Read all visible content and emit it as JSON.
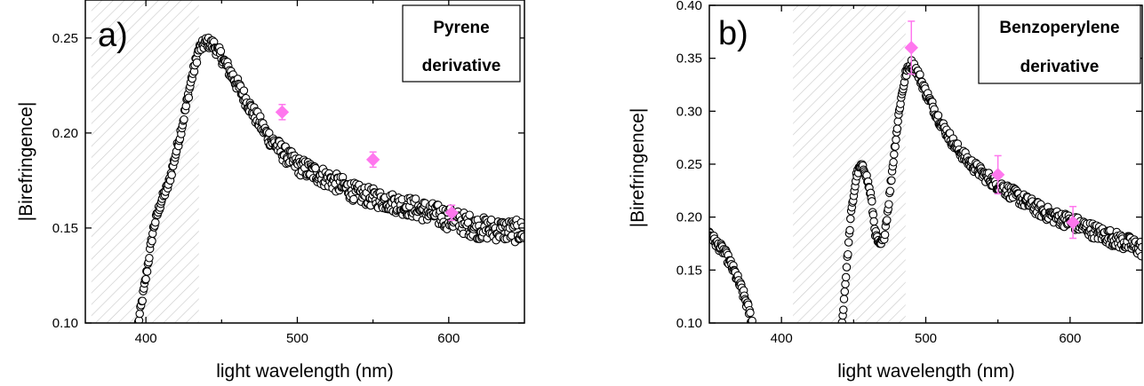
{
  "chart_data": [
    {
      "type": "scatter",
      "panel_label": "a)",
      "legend_lines": [
        "Pyrene",
        "derivative"
      ],
      "xlabel": "light wavelength (nm)",
      "ylabel": "|Birefringence|",
      "xlim": [
        360,
        650
      ],
      "ylim": [
        0.1,
        0.27
      ],
      "xticks": [
        400,
        500,
        600
      ],
      "yticks": [
        0.1,
        0.15,
        0.2,
        0.25
      ],
      "ytick_labels": [
        "0.10",
        "0.15",
        "0.20",
        "0.25"
      ],
      "shaded_region": [
        364,
        435
      ],
      "colors": {
        "measured": "#ffffff",
        "measured_edge": "#000000",
        "computed": "#ff77ee",
        "hatch": "#cccccc"
      },
      "series": [
        {
          "marker": "open-circle",
          "curve": [
            [
              395,
              0.1
            ],
            [
              400,
              0.124
            ],
            [
              405,
              0.15
            ],
            [
              410,
              0.164
            ],
            [
              415,
              0.173
            ],
            [
              420,
              0.19
            ],
            [
              425,
              0.208
            ],
            [
              430,
              0.228
            ],
            [
              435,
              0.244
            ],
            [
              440,
              0.248
            ],
            [
              445,
              0.246
            ],
            [
              450,
              0.24
            ],
            [
              460,
              0.226
            ],
            [
              470,
              0.212
            ],
            [
              480,
              0.199
            ],
            [
              490,
              0.19
            ],
            [
              500,
              0.183
            ],
            [
              520,
              0.176
            ],
            [
              540,
              0.168
            ],
            [
              560,
              0.164
            ],
            [
              580,
              0.16
            ],
            [
              600,
              0.155
            ],
            [
              620,
              0.15
            ],
            [
              650,
              0.148
            ]
          ],
          "band": [
            [
              395,
              0.002
            ],
            [
              440,
              0.003
            ],
            [
              470,
              0.004
            ],
            [
              510,
              0.005
            ],
            [
              560,
              0.005
            ],
            [
              600,
              0.006
            ],
            [
              650,
              0.006
            ]
          ]
        },
        {
          "marker": "diamond",
          "points": [
            {
              "x": 490,
              "y": 0.211,
              "err": 0.004
            },
            {
              "x": 550,
              "y": 0.186,
              "err": 0.004
            },
            {
              "x": 602,
              "y": 0.158,
              "err": 0.004
            }
          ]
        }
      ]
    },
    {
      "type": "scatter",
      "panel_label": "b)",
      "legend_lines": [
        "Benzoperylene",
        "derivative"
      ],
      "xlabel": "light wavelength (nm)",
      "ylabel": "|Birefringence|",
      "xlim": [
        350,
        650
      ],
      "ylim": [
        0.1,
        0.4
      ],
      "xticks": [
        400,
        500,
        600
      ],
      "yticks": [
        0.1,
        0.15,
        0.2,
        0.25,
        0.3,
        0.35,
        0.4
      ],
      "ytick_labels": [
        "0.10",
        "0.15",
        "0.20",
        "0.25",
        "0.30",
        "0.35",
        "0.40"
      ],
      "shaded_region": [
        408,
        486
      ],
      "colors": {
        "measured": "#ffffff",
        "measured_edge": "#000000",
        "computed": "#ff77ee",
        "hatch": "#cccccc"
      },
      "series": [
        {
          "marker": "open-circle",
          "curve": [
            [
              350,
              0.185
            ],
            [
              355,
              0.175
            ],
            [
              360,
              0.168
            ],
            [
              365,
              0.155
            ],
            [
              370,
              0.14
            ],
            [
              375,
              0.122
            ],
            [
              380,
              0.1
            ]
          ],
          "band": [
            [
              350,
              0.004
            ],
            [
              380,
              0.005
            ]
          ]
        },
        {
          "marker": "open-circle",
          "curve": [
            [
              442,
              0.1
            ],
            [
              445,
              0.15
            ],
            [
              448,
              0.2
            ],
            [
              452,
              0.24
            ],
            [
              455,
              0.248
            ],
            [
              458,
              0.244
            ],
            [
              462,
              0.22
            ],
            [
              465,
              0.185
            ],
            [
              468,
              0.172
            ],
            [
              471,
              0.18
            ],
            [
              474,
              0.21
            ],
            [
              478,
              0.26
            ],
            [
              482,
              0.305
            ],
            [
              486,
              0.335
            ],
            [
              490,
              0.345
            ],
            [
              494,
              0.338
            ],
            [
              500,
              0.318
            ],
            [
              510,
              0.29
            ],
            [
              520,
              0.268
            ],
            [
              530,
              0.252
            ],
            [
              540,
              0.24
            ],
            [
              550,
              0.231
            ],
            [
              560,
              0.222
            ],
            [
              570,
              0.214
            ],
            [
              580,
              0.206
            ],
            [
              590,
              0.2
            ],
            [
              600,
              0.196
            ],
            [
              620,
              0.185
            ],
            [
              640,
              0.175
            ],
            [
              650,
              0.17
            ]
          ],
          "band": [
            [
              442,
              0.003
            ],
            [
              490,
              0.004
            ],
            [
              550,
              0.006
            ],
            [
              600,
              0.007
            ],
            [
              650,
              0.008
            ]
          ]
        },
        {
          "marker": "diamond",
          "points": [
            {
              "x": 490,
              "y": 0.36,
              "err": 0.025
            },
            {
              "x": 550,
              "y": 0.24,
              "err": 0.018
            },
            {
              "x": 602,
              "y": 0.195,
              "err": 0.015
            }
          ]
        }
      ]
    }
  ]
}
